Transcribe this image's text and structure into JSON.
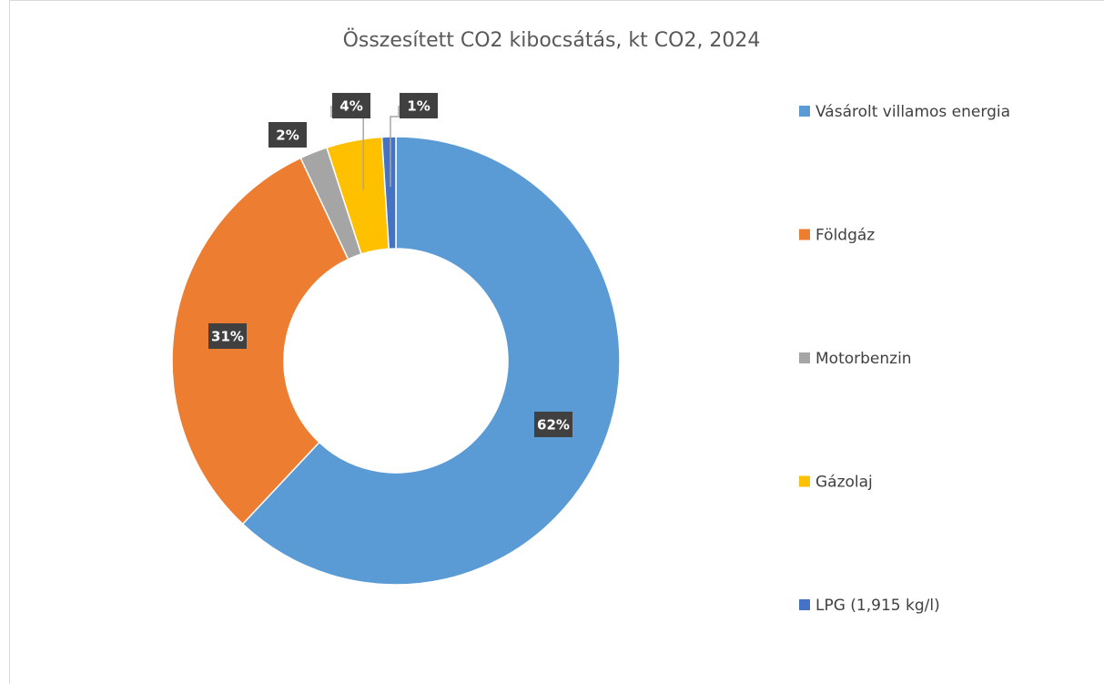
{
  "chart_data": {
    "type": "donut",
    "title": "Összesített CO2 kibocsátás, kt CO2, 2024",
    "categories": [
      "Vásárolt villamos energia",
      "Földgáz",
      "Motorbenzin",
      "Gázolaj",
      "LPG (1,915 kg/l)"
    ],
    "values": [
      62,
      31,
      2,
      4,
      1
    ],
    "value_labels": [
      "62%",
      "31%",
      "2%",
      "4%",
      "1%"
    ],
    "colors": [
      "#5b9bd5",
      "#ed7d31",
      "#a5a5a5",
      "#ffc000",
      "#4472c4"
    ],
    "legend": "right"
  }
}
